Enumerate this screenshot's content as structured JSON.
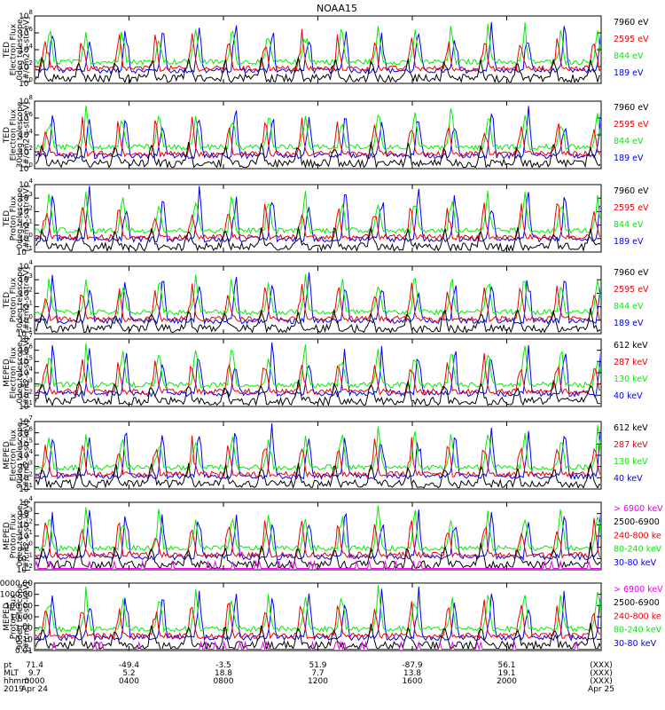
{
  "title": "NOAA15",
  "colors": {
    "black": "#000000",
    "red": "#ee0000",
    "green": "#00ee00",
    "blue": "#0000ee",
    "magenta": "#ee00ee"
  },
  "panels": [
    {
      "ylabel": [
        "TED",
        "Electron Flux",
        "0deg telescope",
        "[#/cm2-s-str-eV]"
      ],
      "log": true,
      "yticks": [
        [
          "0",
          "10"
        ],
        [
          "2",
          "10"
        ],
        [
          "4",
          "10"
        ],
        [
          "6",
          "10"
        ],
        [
          "8",
          "10"
        ]
      ],
      "legend": [
        {
          "text": "7960 eV",
          "color": "black"
        },
        {
          "text": "2595 eV",
          "color": "red"
        },
        {
          "text": "844 eV",
          "color": "green"
        },
        {
          "text": "189 eV",
          "color": "blue"
        }
      ]
    },
    {
      "ylabel": [
        "TED",
        "Electron Flux",
        "30deg telescope",
        "[#/cm2-s-str-eV]"
      ],
      "log": true,
      "yticks": [
        [
          "0",
          "10"
        ],
        [
          "2",
          "10"
        ],
        [
          "4",
          "10"
        ],
        [
          "6",
          "10"
        ],
        [
          "8",
          "10"
        ]
      ],
      "legend": [
        {
          "text": "7960 eV",
          "color": "black"
        },
        {
          "text": "2595 eV",
          "color": "red"
        },
        {
          "text": "844 eV",
          "color": "green"
        },
        {
          "text": "189 eV",
          "color": "blue"
        }
      ]
    },
    {
      "ylabel": [
        "TED",
        "Proton Flux",
        "0deg telescope",
        "[#/cm2-s-str-eV]"
      ],
      "log": true,
      "yticks": [
        [
          "-1",
          "10"
        ],
        [
          "0",
          "10"
        ],
        [
          "1",
          "10"
        ],
        [
          "2",
          "10"
        ],
        [
          "3",
          "10"
        ],
        [
          "4",
          "10"
        ]
      ],
      "legend": [
        {
          "text": "7960 eV",
          "color": "black"
        },
        {
          "text": "2595 eV",
          "color": "red"
        },
        {
          "text": "844 eV",
          "color": "green"
        },
        {
          "text": "189 eV",
          "color": "blue"
        }
      ]
    },
    {
      "ylabel": [
        "TED",
        "Proton Flux",
        "30deg telescope",
        "[#/cm2-s-str-eV]"
      ],
      "log": true,
      "yticks": [
        [
          "-1",
          "10"
        ],
        [
          "0",
          "10"
        ],
        [
          "1",
          "10"
        ],
        [
          "2",
          "10"
        ],
        [
          "3",
          "10"
        ],
        [
          "4",
          "10"
        ]
      ],
      "legend": [
        {
          "text": "7960 eV",
          "color": "black"
        },
        {
          "text": "2595 eV",
          "color": "red"
        },
        {
          "text": "844 eV",
          "color": "green"
        },
        {
          "text": "189 eV",
          "color": "blue"
        }
      ]
    },
    {
      "ylabel": [
        "MEPED",
        "Electron Flux",
        "0deg telescope",
        "[#/cm2-s-str-keV]"
      ],
      "log": true,
      "yticks": [
        [
          "1",
          "10"
        ],
        [
          "2",
          "10"
        ],
        [
          "3",
          "10"
        ],
        [
          "4",
          "10"
        ],
        [
          "5",
          "10"
        ],
        [
          "6",
          "10"
        ],
        [
          "7",
          "10"
        ]
      ],
      "legend": [
        {
          "text": "612 keV",
          "color": "black"
        },
        {
          "text": "287 keV",
          "color": "red"
        },
        {
          "text": "130 keV",
          "color": "green"
        },
        {
          "text": "40 keV",
          "color": "blue"
        }
      ]
    },
    {
      "ylabel": [
        "MEPED",
        "Electron Flux",
        "90deg telescope",
        "[#/cm2-s-str-keV]"
      ],
      "log": true,
      "yticks": [
        [
          "1",
          "10"
        ],
        [
          "2",
          "10"
        ],
        [
          "3",
          "10"
        ],
        [
          "4",
          "10"
        ],
        [
          "5",
          "10"
        ],
        [
          "6",
          "10"
        ],
        [
          "7",
          "10"
        ]
      ],
      "legend": [
        {
          "text": "612 keV",
          "color": "black"
        },
        {
          "text": "287 keV",
          "color": "red"
        },
        {
          "text": "130 keV",
          "color": "green"
        },
        {
          "text": "40 keV",
          "color": "blue"
        }
      ]
    },
    {
      "ylabel": [
        "MEPED",
        "Proton Flux",
        "0deg telescope",
        "[#/cm2-s-str-keV]"
      ],
      "log": true,
      "yticks": [
        [
          "-2",
          "10"
        ],
        [
          "-1",
          "10"
        ],
        [
          "0",
          "10"
        ],
        [
          "1",
          "10"
        ],
        [
          "2",
          "10"
        ],
        [
          "3",
          "10"
        ],
        [
          "4",
          "10"
        ]
      ],
      "legend": [
        {
          "text": "> 6900 keV",
          "color": "magenta"
        },
        {
          "text": "2500-6900",
          "color": "black"
        },
        {
          "text": "240-800 ke",
          "color": "red"
        },
        {
          "text": "80-240 keV",
          "color": "green"
        },
        {
          "text": "30-80 keV",
          "color": "blue"
        }
      ]
    },
    {
      "ylabel": [
        "MEPED",
        "Proton Flux",
        "90deg telescope",
        "[#/cm2-s-str-keV]"
      ],
      "log": false,
      "yticks": [
        [
          "0.01",
          ""
        ],
        [
          "0.10",
          ""
        ],
        [
          "1.00",
          ""
        ],
        [
          "10.00",
          ""
        ],
        [
          "100.00",
          ""
        ],
        [
          "1000.00",
          ""
        ],
        [
          "10000.00",
          ""
        ]
      ],
      "legend": [
        {
          "text": "> 6900 keV",
          "color": "magenta"
        },
        {
          "text": "2500-6900",
          "color": "black"
        },
        {
          "text": "240-800 ke",
          "color": "red"
        },
        {
          "text": "80-240 keV",
          "color": "green"
        },
        {
          "text": "30-80 keV",
          "color": "blue"
        }
      ]
    }
  ],
  "footer": {
    "row_labels": [
      "pt",
      "MLT",
      "hhmm",
      "2019"
    ],
    "columns": [
      [
        "71.4",
        "9.7",
        "0000",
        "Apr 24"
      ],
      [
        "-49.4",
        "5.2",
        "0400",
        ""
      ],
      [
        "-3.5",
        "18.8",
        "0800",
        ""
      ],
      [
        "51.9",
        "7.7",
        "1200",
        ""
      ],
      [
        "-87.9",
        "13.8",
        "1600",
        ""
      ],
      [
        "56.1",
        "19.1",
        "2000",
        ""
      ],
      [
        "(XXX)",
        "(XXX)",
        "(XXX)",
        "Apr 25"
      ]
    ]
  }
}
